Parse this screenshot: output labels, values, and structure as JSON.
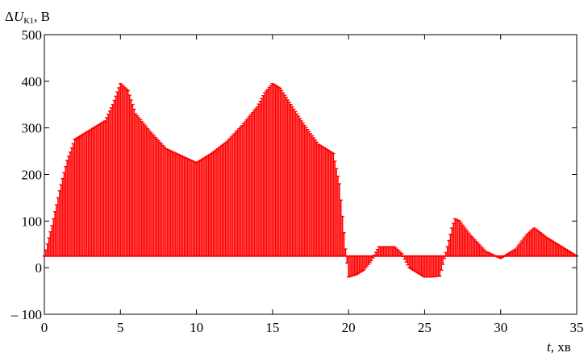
{
  "chart_data": {
    "type": "area",
    "ylabel": {
      "prefix": "Δ",
      "symbol": "U",
      "subscript": "К1",
      "unit": ", В"
    },
    "xlabel": {
      "symbol": "t",
      "unit": ", хв"
    },
    "xlim": [
      0,
      35
    ],
    "ylim": [
      -100,
      500
    ],
    "x_ticks": [
      0,
      5,
      10,
      15,
      20,
      25,
      30,
      35
    ],
    "y_ticks": [
      -100,
      0,
      100,
      200,
      300,
      400,
      500
    ],
    "y_tick_labels": [
      "– 100",
      "0",
      "100",
      "200",
      "300",
      "400",
      "500"
    ],
    "baseline": 25,
    "fill_color": "#ff0000",
    "grid": false,
    "series": [
      {
        "x": [
          0,
          0.5,
          1,
          1.5,
          2,
          3,
          4,
          4.5,
          5,
          5.5,
          6,
          7,
          8,
          9,
          10,
          11,
          12,
          13,
          14,
          14.5,
          15,
          15.5,
          16,
          17,
          18,
          19,
          19.4,
          19.8,
          20,
          20.5,
          21,
          21.5,
          22,
          23,
          23.5,
          24,
          25,
          25.5,
          26,
          26.5,
          26.8,
          27,
          27.3,
          28,
          29,
          30,
          31,
          31.7,
          32.2,
          33,
          34,
          35
        ],
        "y": [
          25,
          90,
          165,
          230,
          275,
          295,
          315,
          350,
          395,
          380,
          330,
          290,
          255,
          240,
          225,
          245,
          270,
          305,
          345,
          375,
          395,
          385,
          360,
          310,
          265,
          245,
          180,
          40,
          -20,
          -15,
          -5,
          15,
          45,
          45,
          30,
          0,
          -20,
          -20,
          -18,
          45,
          85,
          105,
          100,
          70,
          35,
          20,
          40,
          70,
          85,
          65,
          45,
          25
        ]
      }
    ]
  }
}
